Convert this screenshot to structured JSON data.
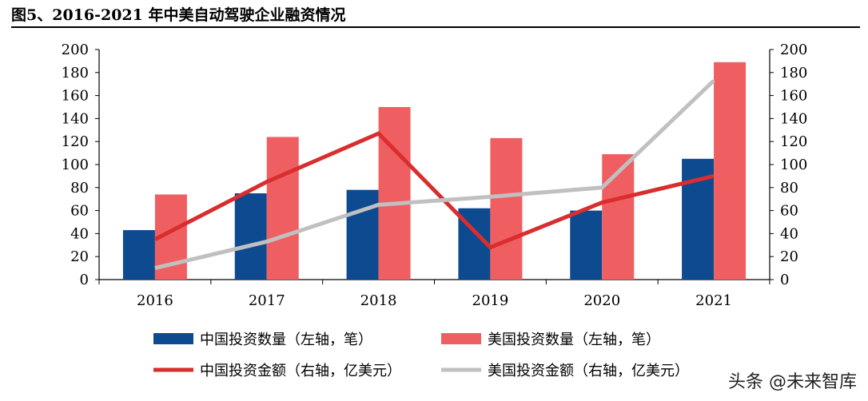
{
  "title": "图5、2016-2021 年中美自动驾驶企业融资情况",
  "watermark": "头条 @未来智库",
  "colors": {
    "china_count": "#0e4a8f",
    "us_count": "#ef5f62",
    "china_amount": "#d92d2e",
    "us_amount": "#c0c0c0"
  },
  "chart_data": {
    "type": "bar",
    "categories": [
      "2016",
      "2017",
      "2018",
      "2019",
      "2020",
      "2021"
    ],
    "ylim_left": [
      0,
      200
    ],
    "ylim_right": [
      0,
      200
    ],
    "yticks": [
      0,
      20,
      40,
      60,
      80,
      100,
      120,
      140,
      160,
      180,
      200
    ],
    "series": [
      {
        "name": "中国投资数量（左轴，笔）",
        "kind": "bar",
        "axis": "left",
        "color": "#0e4a8f",
        "values": [
          43,
          75,
          78,
          62,
          60,
          105
        ]
      },
      {
        "name": "美国投资数量（左轴，笔）",
        "kind": "bar",
        "axis": "left",
        "color": "#ef5f62",
        "values": [
          74,
          124,
          150,
          123,
          109,
          189
        ]
      },
      {
        "name": "中国投资金额（右轴，亿美元）",
        "kind": "line",
        "axis": "right",
        "color": "#d92d2e",
        "values": [
          35,
          85,
          127,
          28,
          67,
          90
        ]
      },
      {
        "name": "美国投资金额（右轴，亿美元）",
        "kind": "line",
        "axis": "right",
        "color": "#c0c0c0",
        "values": [
          10,
          33,
          65,
          72,
          80,
          173
        ]
      }
    ]
  }
}
